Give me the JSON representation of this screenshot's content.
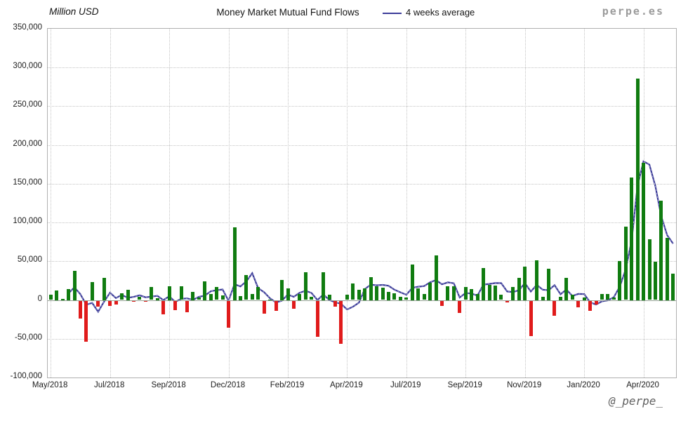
{
  "header": {
    "unit_label": "Million USD",
    "title": "Money Market Mutual Fund Flows",
    "legend_label": "4 weeks average",
    "watermark": "perpe.es"
  },
  "footer": {
    "handle": "@_perpe_"
  },
  "chart_data": {
    "type": "bar",
    "title": "Money Market Mutual Fund Flows",
    "unit": "Million USD",
    "frequency": "weekly",
    "x_range": [
      "May/2018",
      "Apr/2020"
    ],
    "ylim": [
      -100000,
      350000
    ],
    "y_tick_step": 50000,
    "grid": true,
    "legend_position": "top",
    "y_ticks": [
      {
        "value": 350000,
        "label": "350,000"
      },
      {
        "value": 300000,
        "label": "300,000"
      },
      {
        "value": 250000,
        "label": "250,000"
      },
      {
        "value": 200000,
        "label": "200,000"
      },
      {
        "value": 150000,
        "label": "150,000"
      },
      {
        "value": 100000,
        "label": "100,000"
      },
      {
        "value": 50000,
        "label": "50,000"
      },
      {
        "value": 0,
        "label": "0"
      },
      {
        "value": -50000,
        "label": "-50,000"
      },
      {
        "value": -100000,
        "label": "-100,000"
      }
    ],
    "x_ticks": [
      {
        "index": 0,
        "label": "May/2018"
      },
      {
        "index": 10,
        "label": "Jul/2018"
      },
      {
        "index": 20,
        "label": "Sep/2018"
      },
      {
        "index": 30,
        "label": "Dec/2018"
      },
      {
        "index": 40,
        "label": "Feb/2019"
      },
      {
        "index": 50,
        "label": "Apr/2019"
      },
      {
        "index": 60,
        "label": "Jul/2019"
      },
      {
        "index": 70,
        "label": "Sep/2019"
      },
      {
        "index": 80,
        "label": "Nov/2019"
      },
      {
        "index": 90,
        "label": "Jan/2020"
      },
      {
        "index": 100,
        "label": "Apr/2020"
      }
    ],
    "series": [
      {
        "name": "Weekly money market mutual fund flows",
        "type": "bar",
        "values": [
          7000,
          12000,
          1500,
          14000,
          38000,
          -23000,
          -53000,
          23000,
          -7500,
          28500,
          -6500,
          -4500,
          9000,
          13000,
          -1500,
          4000,
          -1500,
          16500,
          2500,
          -18000,
          18000,
          -12000,
          17500,
          -15000,
          10500,
          3000,
          24000,
          7500,
          16500,
          6000,
          -34500,
          93500,
          5000,
          32000,
          8000,
          16500,
          -16500,
          1000,
          -13500,
          25500,
          15000,
          -10500,
          7500,
          35500,
          4000,
          -47000,
          36000,
          7000,
          -7500,
          -55500,
          7000,
          21500,
          13500,
          15000,
          29500,
          18000,
          15500,
          10500,
          9000,
          4500,
          3000,
          46000,
          15000,
          8000,
          22500,
          57500,
          -7000,
          18000,
          18000,
          -16000,
          16500,
          14500,
          7500,
          41000,
          20000,
          19000,
          7000,
          -2000,
          17000,
          29000,
          43000,
          -45500,
          51500,
          4500,
          40000,
          -19500,
          4500,
          29000,
          7000,
          -9000,
          3500,
          -13500,
          -4500,
          8000,
          8000,
          3000,
          50500,
          95000,
          158000,
          286000,
          177000,
          78000,
          49000,
          128000,
          80000,
          34000
        ]
      },
      {
        "name": "4 weeks average",
        "type": "line",
        "derivation": "trailing mean of previous 4 weekly bar values, plotted from the 4th week onward"
      }
    ],
    "colors": {
      "positive": "#107c10",
      "negative": "#e01b1b",
      "average_line": "#3c3c99",
      "grid": "#c3c3c3",
      "zero_line": "#94a294",
      "border": "#b0b0b0",
      "text": "#1c1c1c"
    }
  }
}
